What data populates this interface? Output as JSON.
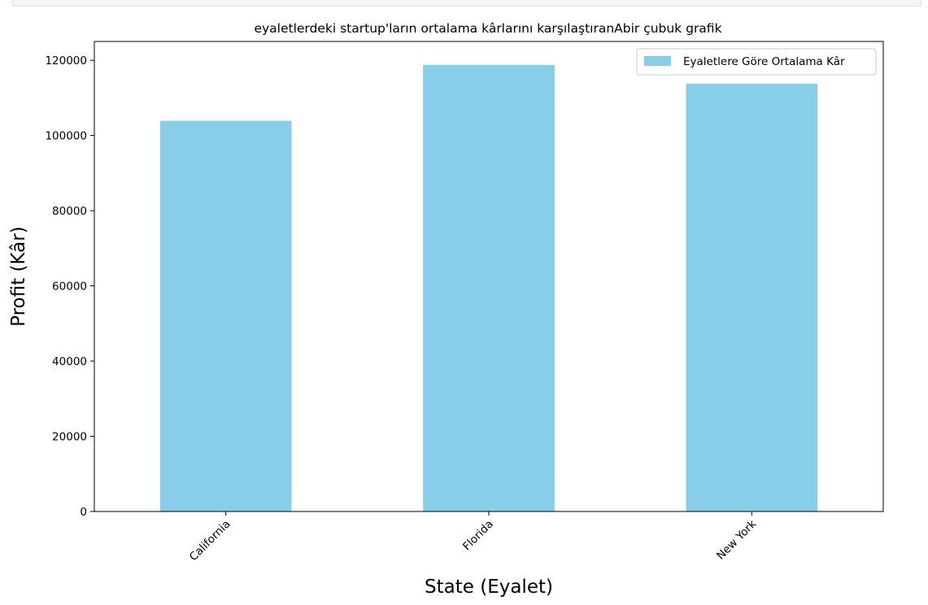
{
  "chart_data": {
    "type": "bar",
    "title": "eyaletlerdeki startup'ların ortalama kârlarını karşılaştıranAbir çubuk grafik",
    "xlabel": "State (Eyalet)",
    "ylabel": "Profit (Kâr)",
    "categories": [
      "California",
      "Florida",
      "New York"
    ],
    "series": [
      {
        "name": "Eyaletlere Göre Ortalama Kâr",
        "values": [
          103905,
          118774,
          113757
        ],
        "color": "#87ceeb"
      }
    ],
    "ylim": [
      0,
      125000
    ],
    "yticks": [
      0,
      20000,
      40000,
      60000,
      80000,
      100000,
      120000
    ],
    "ytick_labels": [
      "0",
      "20000",
      "40000",
      "60000",
      "80000",
      "100000",
      "120000"
    ],
    "xtick_rotation": 45,
    "grid": false,
    "legend_position": "top-right"
  }
}
